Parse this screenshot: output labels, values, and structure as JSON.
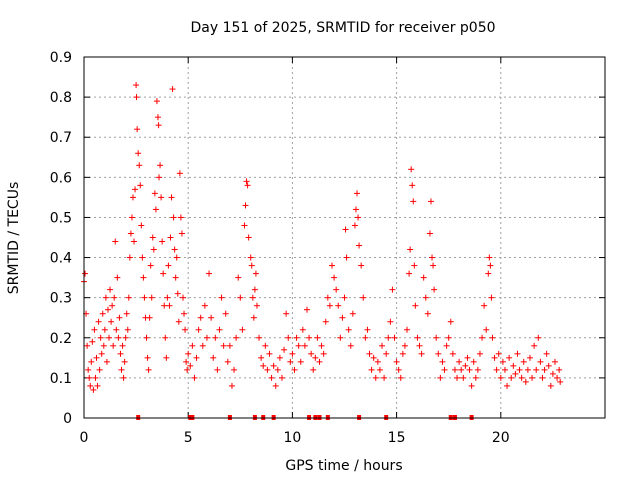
{
  "chart_data": {
    "type": "scatter",
    "title": "Day 151 of 2025, SRMTID for receiver p050",
    "xlabel": "GPS time / hours",
    "ylabel": "SRMTID / TECUs",
    "xlim": [
      0,
      25
    ],
    "ylim": [
      0,
      0.9
    ],
    "xticks": [
      0,
      5,
      10,
      15,
      20
    ],
    "yticks": [
      0,
      0.1,
      0.2,
      0.3,
      0.4,
      0.5,
      0.6,
      0.7,
      0.8,
      0.9
    ],
    "xtick_labels": [
      "0",
      "5",
      "10",
      "15",
      "20"
    ],
    "ytick_labels": [
      "0",
      "0.1",
      "0.2",
      "0.3",
      "0.4",
      "0.5",
      "0.6",
      "0.7",
      "0.8",
      "0.9"
    ],
    "grid": true,
    "marker": "+",
    "series_color": "#ff0000",
    "series": [
      {
        "name": "SRMTID",
        "points": [
          [
            0.0,
            0.34
          ],
          [
            0.05,
            0.36
          ],
          [
            0.1,
            0.26
          ],
          [
            0.15,
            0.18
          ],
          [
            0.2,
            0.12
          ],
          [
            0.25,
            0.1
          ],
          [
            0.3,
            0.08
          ],
          [
            0.35,
            0.14
          ],
          [
            0.4,
            0.19
          ],
          [
            0.45,
            0.07
          ],
          [
            0.5,
            0.22
          ],
          [
            0.55,
            0.1
          ],
          [
            0.6,
            0.15
          ],
          [
            0.65,
            0.08
          ],
          [
            0.7,
            0.24
          ],
          [
            0.75,
            0.12
          ],
          [
            0.8,
            0.2
          ],
          [
            0.85,
            0.16
          ],
          [
            0.9,
            0.26
          ],
          [
            0.95,
            0.18
          ],
          [
            1.0,
            0.22
          ],
          [
            1.05,
            0.3
          ],
          [
            1.1,
            0.14
          ],
          [
            1.15,
            0.27
          ],
          [
            1.2,
            0.2
          ],
          [
            1.25,
            0.32
          ],
          [
            1.3,
            0.24
          ],
          [
            1.35,
            0.28
          ],
          [
            1.4,
            0.18
          ],
          [
            1.45,
            0.3
          ],
          [
            1.5,
            0.44
          ],
          [
            1.55,
            0.22
          ],
          [
            1.6,
            0.35
          ],
          [
            1.65,
            0.2
          ],
          [
            1.7,
            0.25
          ],
          [
            1.75,
            0.16
          ],
          [
            1.8,
            0.12
          ],
          [
            1.85,
            0.18
          ],
          [
            1.9,
            0.1
          ],
          [
            1.95,
            0.14
          ],
          [
            2.0,
            0.2
          ],
          [
            2.05,
            0.26
          ],
          [
            2.1,
            0.22
          ],
          [
            2.15,
            0.3
          ],
          [
            2.2,
            0.4
          ],
          [
            2.25,
            0.46
          ],
          [
            2.3,
            0.5
          ],
          [
            2.35,
            0.55
          ],
          [
            2.4,
            0.44
          ],
          [
            2.45,
            0.57
          ],
          [
            2.5,
            0.83
          ],
          [
            2.52,
            0.8
          ],
          [
            2.55,
            0.72
          ],
          [
            2.6,
            0.66
          ],
          [
            2.65,
            0.63
          ],
          [
            2.7,
            0.58
          ],
          [
            2.75,
            0.48
          ],
          [
            2.8,
            0.4
          ],
          [
            2.85,
            0.35
          ],
          [
            2.9,
            0.3
          ],
          [
            2.95,
            0.25
          ],
          [
            3.0,
            0.2
          ],
          [
            3.05,
            0.15
          ],
          [
            3.1,
            0.12
          ],
          [
            3.15,
            0.25
          ],
          [
            3.2,
            0.38
          ],
          [
            3.25,
            0.3
          ],
          [
            3.3,
            0.45
          ],
          [
            3.35,
            0.42
          ],
          [
            3.4,
            0.56
          ],
          [
            3.45,
            0.52
          ],
          [
            3.5,
            0.79
          ],
          [
            3.55,
            0.75
          ],
          [
            3.58,
            0.73
          ],
          [
            3.6,
            0.6
          ],
          [
            3.65,
            0.63
          ],
          [
            3.7,
            0.55
          ],
          [
            3.75,
            0.44
          ],
          [
            3.8,
            0.36
          ],
          [
            3.85,
            0.28
          ],
          [
            3.9,
            0.2
          ],
          [
            3.95,
            0.15
          ],
          [
            4.0,
            0.3
          ],
          [
            4.05,
            0.38
          ],
          [
            4.1,
            0.28
          ],
          [
            4.15,
            0.45
          ],
          [
            4.2,
            0.55
          ],
          [
            4.25,
            0.82
          ],
          [
            4.3,
            0.5
          ],
          [
            4.35,
            0.42
          ],
          [
            4.4,
            0.35
          ],
          [
            4.45,
            0.4
          ],
          [
            4.5,
            0.31
          ],
          [
            4.55,
            0.24
          ],
          [
            4.6,
            0.61
          ],
          [
            4.65,
            0.5
          ],
          [
            4.7,
            0.46
          ],
          [
            4.75,
            0.3
          ],
          [
            4.8,
            0.26
          ],
          [
            4.85,
            0.22
          ],
          [
            4.9,
            0.14
          ],
          [
            4.95,
            0.12
          ],
          [
            5.0,
            0.16
          ],
          [
            5.1,
            0.13
          ],
          [
            5.2,
            0.18
          ],
          [
            5.3,
            0.1
          ],
          [
            5.4,
            0.15
          ],
          [
            5.5,
            0.22
          ],
          [
            5.6,
            0.25
          ],
          [
            5.7,
            0.18
          ],
          [
            5.8,
            0.28
          ],
          [
            5.9,
            0.2
          ],
          [
            6.0,
            0.36
          ],
          [
            6.1,
            0.25
          ],
          [
            6.2,
            0.15
          ],
          [
            6.3,
            0.2
          ],
          [
            6.4,
            0.12
          ],
          [
            6.5,
            0.22
          ],
          [
            6.6,
            0.3
          ],
          [
            6.7,
            0.18
          ],
          [
            6.8,
            0.26
          ],
          [
            6.9,
            0.14
          ],
          [
            7.0,
            0.18
          ],
          [
            7.1,
            0.08
          ],
          [
            7.2,
            0.12
          ],
          [
            7.3,
            0.2
          ],
          [
            7.4,
            0.35
          ],
          [
            7.5,
            0.3
          ],
          [
            7.6,
            0.22
          ],
          [
            7.7,
            0.48
          ],
          [
            7.75,
            0.53
          ],
          [
            7.8,
            0.59
          ],
          [
            7.85,
            0.58
          ],
          [
            7.9,
            0.45
          ],
          [
            8.0,
            0.4
          ],
          [
            8.05,
            0.38
          ],
          [
            8.1,
            0.3
          ],
          [
            8.15,
            0.25
          ],
          [
            8.2,
            0.32
          ],
          [
            8.25,
            0.36
          ],
          [
            8.3,
            0.28
          ],
          [
            8.4,
            0.2
          ],
          [
            8.5,
            0.15
          ],
          [
            8.6,
            0.13
          ],
          [
            8.7,
            0.18
          ],
          [
            8.8,
            0.12
          ],
          [
            8.9,
            0.16
          ],
          [
            9.0,
            0.1
          ],
          [
            9.1,
            0.13
          ],
          [
            9.2,
            0.08
          ],
          [
            9.3,
            0.12
          ],
          [
            9.4,
            0.15
          ],
          [
            9.5,
            0.1
          ],
          [
            9.6,
            0.17
          ],
          [
            9.7,
            0.26
          ],
          [
            9.8,
            0.2
          ],
          [
            9.9,
            0.14
          ],
          [
            10.0,
            0.16
          ],
          [
            10.1,
            0.12
          ],
          [
            10.2,
            0.2
          ],
          [
            10.3,
            0.18
          ],
          [
            10.4,
            0.14
          ],
          [
            10.5,
            0.22
          ],
          [
            10.6,
            0.18
          ],
          [
            10.7,
            0.27
          ],
          [
            10.8,
            0.2
          ],
          [
            10.9,
            0.16
          ],
          [
            11.0,
            0.12
          ],
          [
            11.1,
            0.15
          ],
          [
            11.2,
            0.2
          ],
          [
            11.3,
            0.14
          ],
          [
            11.4,
            0.18
          ],
          [
            11.5,
            0.16
          ],
          [
            11.6,
            0.24
          ],
          [
            11.7,
            0.3
          ],
          [
            11.8,
            0.28
          ],
          [
            11.9,
            0.38
          ],
          [
            12.0,
            0.35
          ],
          [
            12.1,
            0.32
          ],
          [
            12.2,
            0.28
          ],
          [
            12.3,
            0.2
          ],
          [
            12.4,
            0.25
          ],
          [
            12.5,
            0.3
          ],
          [
            12.55,
            0.47
          ],
          [
            12.6,
            0.4
          ],
          [
            12.7,
            0.22
          ],
          [
            12.8,
            0.18
          ],
          [
            12.9,
            0.26
          ],
          [
            13.0,
            0.48
          ],
          [
            13.05,
            0.52
          ],
          [
            13.1,
            0.56
          ],
          [
            13.15,
            0.5
          ],
          [
            13.2,
            0.43
          ],
          [
            13.3,
            0.38
          ],
          [
            13.4,
            0.3
          ],
          [
            13.5,
            0.2
          ],
          [
            13.6,
            0.22
          ],
          [
            13.7,
            0.16
          ],
          [
            13.8,
            0.12
          ],
          [
            13.9,
            0.15
          ],
          [
            14.0,
            0.1
          ],
          [
            14.1,
            0.14
          ],
          [
            14.2,
            0.12
          ],
          [
            14.3,
            0.18
          ],
          [
            14.4,
            0.1
          ],
          [
            14.5,
            0.16
          ],
          [
            14.6,
            0.2
          ],
          [
            14.7,
            0.24
          ],
          [
            14.8,
            0.32
          ],
          [
            14.9,
            0.2
          ],
          [
            15.0,
            0.14
          ],
          [
            15.1,
            0.12
          ],
          [
            15.2,
            0.1
          ],
          [
            15.3,
            0.16
          ],
          [
            15.4,
            0.18
          ],
          [
            15.5,
            0.22
          ],
          [
            15.6,
            0.36
          ],
          [
            15.65,
            0.42
          ],
          [
            15.7,
            0.62
          ],
          [
            15.75,
            0.58
          ],
          [
            15.8,
            0.54
          ],
          [
            15.85,
            0.38
          ],
          [
            15.9,
            0.28
          ],
          [
            16.0,
            0.2
          ],
          [
            16.1,
            0.18
          ],
          [
            16.2,
            0.16
          ],
          [
            16.3,
            0.35
          ],
          [
            16.4,
            0.3
          ],
          [
            16.5,
            0.26
          ],
          [
            16.6,
            0.46
          ],
          [
            16.65,
            0.54
          ],
          [
            16.7,
            0.4
          ],
          [
            16.75,
            0.38
          ],
          [
            16.8,
            0.32
          ],
          [
            16.9,
            0.2
          ],
          [
            17.0,
            0.16
          ],
          [
            17.1,
            0.1
          ],
          [
            17.2,
            0.14
          ],
          [
            17.3,
            0.12
          ],
          [
            17.4,
            0.18
          ],
          [
            17.5,
            0.2
          ],
          [
            17.6,
            0.24
          ],
          [
            17.7,
            0.16
          ],
          [
            17.8,
            0.12
          ],
          [
            17.9,
            0.1
          ],
          [
            18.0,
            0.14
          ],
          [
            18.1,
            0.12
          ],
          [
            18.2,
            0.1
          ],
          [
            18.3,
            0.13
          ],
          [
            18.4,
            0.15
          ],
          [
            18.5,
            0.12
          ],
          [
            18.6,
            0.08
          ],
          [
            18.7,
            0.14
          ],
          [
            18.8,
            0.1
          ],
          [
            18.9,
            0.12
          ],
          [
            19.0,
            0.16
          ],
          [
            19.1,
            0.2
          ],
          [
            19.2,
            0.28
          ],
          [
            19.3,
            0.22
          ],
          [
            19.4,
            0.36
          ],
          [
            19.45,
            0.4
          ],
          [
            19.5,
            0.38
          ],
          [
            19.55,
            0.3
          ],
          [
            19.6,
            0.2
          ],
          [
            19.7,
            0.15
          ],
          [
            19.8,
            0.12
          ],
          [
            19.9,
            0.16
          ],
          [
            20.0,
            0.1
          ],
          [
            20.1,
            0.14
          ],
          [
            20.2,
            0.12
          ],
          [
            20.3,
            0.08
          ],
          [
            20.4,
            0.15
          ],
          [
            20.5,
            0.1
          ],
          [
            20.6,
            0.13
          ],
          [
            20.7,
            0.11
          ],
          [
            20.8,
            0.16
          ],
          [
            20.9,
            0.12
          ],
          [
            21.0,
            0.1
          ],
          [
            21.1,
            0.14
          ],
          [
            21.2,
            0.09
          ],
          [
            21.3,
            0.12
          ],
          [
            21.4,
            0.15
          ],
          [
            21.5,
            0.1
          ],
          [
            21.6,
            0.18
          ],
          [
            21.7,
            0.12
          ],
          [
            21.8,
            0.2
          ],
          [
            21.9,
            0.14
          ],
          [
            22.0,
            0.1
          ],
          [
            22.1,
            0.12
          ],
          [
            22.2,
            0.16
          ],
          [
            22.3,
            0.13
          ],
          [
            22.4,
            0.08
          ],
          [
            22.5,
            0.11
          ],
          [
            22.6,
            0.14
          ],
          [
            22.7,
            0.1
          ],
          [
            22.8,
            0.12
          ],
          [
            22.85,
            0.09
          ]
        ]
      }
    ],
    "data_gaps_at_zero": [
      2.6,
      5.1,
      5.2,
      7.0,
      8.2,
      8.6,
      9.1,
      10.8,
      11.1,
      11.3,
      11.7,
      13.2,
      14.5,
      17.6,
      17.8,
      18.6
    ]
  }
}
